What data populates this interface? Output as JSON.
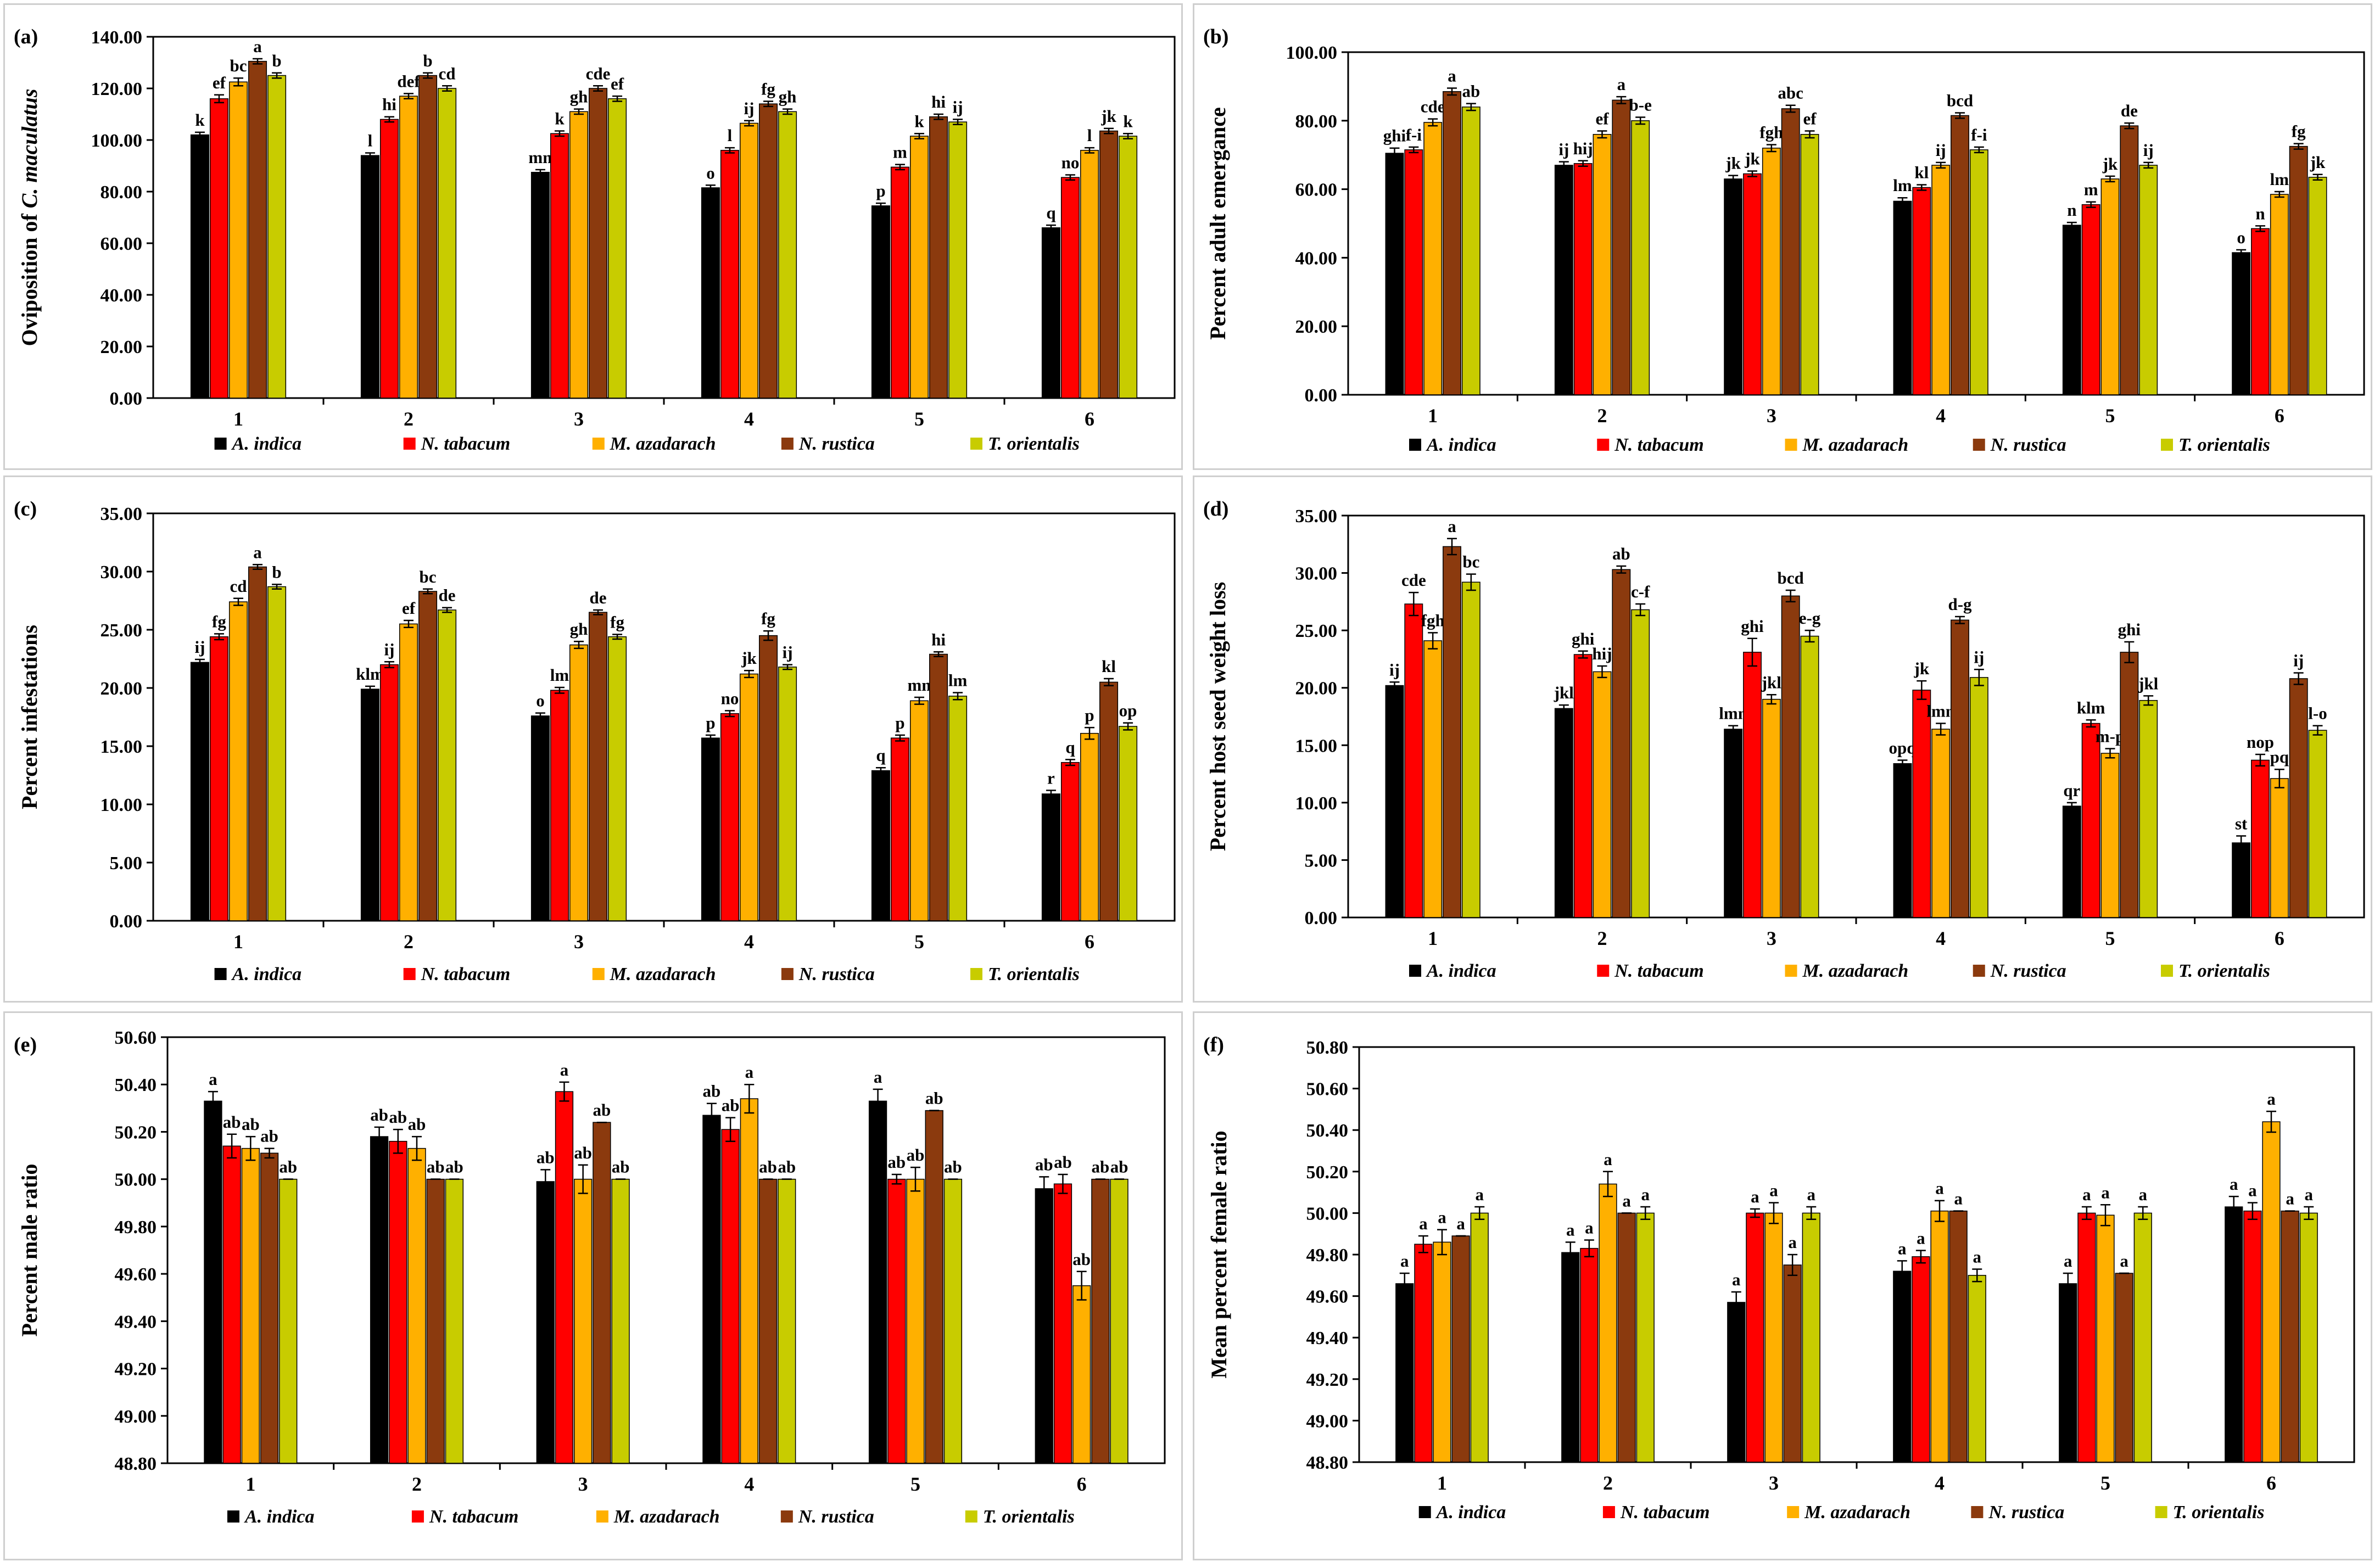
{
  "legend_items": [
    {
      "name": "A. indica",
      "color": "#000000"
    },
    {
      "name": "N. tabacum",
      "color": "#ff0000"
    },
    {
      "name": "M. azadarach",
      "color": "#ffb000"
    },
    {
      "name": "N. rustica",
      "color": "#8b3a0e"
    },
    {
      "name": "T. orientalis",
      "color": "#c8cc00"
    }
  ],
  "chart_data": [
    {
      "type": "bar",
      "panel_label": "(a)",
      "title": "",
      "xlabel": "",
      "ylabel_parts": [
        "Oviposition of ",
        "C. maculatus"
      ],
      "ylim": [
        0,
        140
      ],
      "tick_step": 20,
      "tick_labels": [
        "0.00",
        "20.00",
        "40.00",
        "60.00",
        "80.00",
        "100.00",
        "120.00",
        "140.00"
      ],
      "categories": [
        "1",
        "2",
        "3",
        "4",
        "5",
        "6"
      ],
      "series": [
        {
          "name": "A. indica",
          "values": [
            102,
            94,
            87.5,
            81.5,
            74.5,
            66
          ],
          "errors": [
            1,
            1,
            1,
            1,
            1,
            1
          ],
          "letters": [
            "k",
            "l",
            "mn",
            "o",
            "p",
            "q"
          ]
        },
        {
          "name": "N. tabacum",
          "values": [
            116,
            108,
            102.5,
            96,
            89.5,
            85.5
          ],
          "errors": [
            1.5,
            1,
            1,
            1,
            1,
            1
          ],
          "letters": [
            "ef",
            "hi",
            "k",
            "l",
            "m",
            "no"
          ]
        },
        {
          "name": "M. azadarach",
          "values": [
            122.5,
            117,
            111,
            106.5,
            101.5,
            96
          ],
          "errors": [
            1.5,
            1,
            1,
            1,
            1,
            1
          ],
          "letters": [
            "bc",
            "def",
            "gh",
            "ij",
            "k",
            "l"
          ]
        },
        {
          "name": "N. rustica",
          "values": [
            130.5,
            125,
            120,
            114,
            109,
            103.5
          ],
          "errors": [
            1,
            1,
            1,
            1,
            1,
            1
          ],
          "letters": [
            "a",
            "b",
            "cde",
            "fg",
            "hi",
            "jk"
          ]
        },
        {
          "name": "T. orientalis",
          "values": [
            125,
            120,
            116,
            111,
            107,
            101.5
          ],
          "errors": [
            1,
            1,
            1,
            1,
            1,
            1
          ],
          "letters": [
            "b",
            "cd",
            "ef",
            "gh",
            "ij",
            "k"
          ]
        }
      ]
    },
    {
      "type": "bar",
      "panel_label": "(b)",
      "title": "",
      "xlabel": "",
      "ylabel_parts": [
        "Percent adult emergance"
      ],
      "ylim": [
        0,
        100
      ],
      "tick_step": 20,
      "tick_labels": [
        "0.00",
        "20.00",
        "40.00",
        "60.00",
        "80.00",
        "100.00"
      ],
      "categories": [
        "1",
        "2",
        "3",
        "4",
        "5",
        "6"
      ],
      "series": [
        {
          "name": "A. indica",
          "values": [
            70.5,
            67,
            63,
            56.5,
            49.5,
            41.5
          ],
          "errors": [
            1.5,
            1,
            1,
            1,
            0.8,
            0.8
          ],
          "letters": [
            "ghi",
            "ij",
            "jk",
            "lm",
            "n",
            "o"
          ]
        },
        {
          "name": "N. tabacum",
          "values": [
            71.5,
            67.5,
            64.5,
            60.5,
            55.5,
            48.5
          ],
          "errors": [
            0.8,
            0.8,
            0.8,
            0.8,
            0.8,
            0.8
          ],
          "letters": [
            "f-i",
            "hij",
            "jk",
            "kl",
            "m",
            "n"
          ]
        },
        {
          "name": "M. azadarach",
          "values": [
            79.5,
            76,
            72,
            67,
            63,
            58.5
          ],
          "errors": [
            1,
            1,
            1,
            0.8,
            0.8,
            0.8
          ],
          "letters": [
            "cde",
            "ef",
            "fgh",
            "ij",
            "jk",
            "lm"
          ]
        },
        {
          "name": "N. rustica",
          "values": [
            88.5,
            86,
            83.5,
            81.5,
            78.5,
            72.5
          ],
          "errors": [
            1,
            1,
            1,
            0.8,
            0.8,
            0.8
          ],
          "letters": [
            "a",
            "a",
            "abc",
            "bcd",
            "de",
            "fg"
          ]
        },
        {
          "name": "T. orientalis",
          "values": [
            84,
            80,
            76,
            71.5,
            67,
            63.5
          ],
          "errors": [
            1,
            1,
            1,
            0.8,
            0.8,
            0.8
          ],
          "letters": [
            "ab",
            "b-e",
            "ef",
            "f-i",
            "ij",
            "jk"
          ]
        }
      ]
    },
    {
      "type": "bar",
      "panel_label": "(c)",
      "title": "",
      "xlabel": "",
      "ylabel_parts": [
        "Percent infestations"
      ],
      "ylim": [
        0,
        35
      ],
      "tick_step": 5,
      "tick_labels": [
        "0.00",
        "5.00",
        "10.00",
        "15.00",
        "20.00",
        "25.00",
        "30.00",
        "35.00"
      ],
      "categories": [
        "1",
        "2",
        "3",
        "4",
        "5",
        "6"
      ],
      "series": [
        {
          "name": "A. indica",
          "values": [
            22.2,
            19.9,
            17.6,
            15.7,
            12.9,
            10.9
          ],
          "errors": [
            0.25,
            0.25,
            0.25,
            0.25,
            0.25,
            0.3
          ],
          "letters": [
            "ij",
            "klm",
            "o",
            "p",
            "q",
            "r"
          ]
        },
        {
          "name": "N. tabacum",
          "values": [
            24.4,
            22,
            19.8,
            17.8,
            15.7,
            13.6
          ],
          "errors": [
            0.25,
            0.25,
            0.25,
            0.25,
            0.25,
            0.25
          ],
          "letters": [
            "fg",
            "ij",
            "lm",
            "no",
            "p",
            "q"
          ]
        },
        {
          "name": "M. azadarach",
          "values": [
            27.4,
            25.5,
            23.7,
            21.2,
            18.9,
            16.1
          ],
          "errors": [
            0.3,
            0.3,
            0.3,
            0.3,
            0.3,
            0.5
          ],
          "letters": [
            "cd",
            "ef",
            "gh",
            "jk",
            "mn",
            "p"
          ]
        },
        {
          "name": "N. rustica",
          "values": [
            30.4,
            28.3,
            26.5,
            24.5,
            22.9,
            20.5
          ],
          "errors": [
            0.2,
            0.2,
            0.2,
            0.4,
            0.2,
            0.3
          ],
          "letters": [
            "a",
            "bc",
            "de",
            "fg",
            "hi",
            "kl"
          ]
        },
        {
          "name": "T. orientalis",
          "values": [
            28.7,
            26.7,
            24.4,
            21.8,
            19.3,
            16.7
          ],
          "errors": [
            0.2,
            0.2,
            0.2,
            0.2,
            0.3,
            0.3
          ],
          "letters": [
            "b",
            "de",
            "fg",
            "ij",
            "lm",
            "op"
          ]
        }
      ]
    },
    {
      "type": "bar",
      "panel_label": "(d)",
      "title": "",
      "xlabel": "",
      "ylabel_parts": [
        "Percent host seed weight loss"
      ],
      "ylim": [
        0,
        35
      ],
      "tick_step": 5,
      "tick_labels": [
        "0.00",
        "5.00",
        "10.00",
        "15.00",
        "20.00",
        "25.00",
        "30.00",
        "35.00"
      ],
      "categories": [
        "1",
        "2",
        "3",
        "4",
        "5",
        "6"
      ],
      "series": [
        {
          "name": "A. indica",
          "values": [
            20.2,
            18.2,
            16.4,
            13.4,
            9.7,
            6.5
          ],
          "errors": [
            0.3,
            0.3,
            0.3,
            0.3,
            0.3,
            0.6
          ],
          "letters": [
            "ij",
            "jkl",
            "lmn",
            "opq",
            "qr",
            "st"
          ]
        },
        {
          "name": "N. tabacum",
          "values": [
            27.3,
            22.9,
            23.1,
            19.8,
            16.9,
            13.7
          ],
          "errors": [
            1,
            0.3,
            1.2,
            0.8,
            0.3,
            0.5
          ],
          "letters": [
            "cde",
            "ghi",
            "ghi",
            "jk",
            "klm",
            "nop"
          ]
        },
        {
          "name": "M. azadarach",
          "values": [
            24.1,
            21.4,
            19.0,
            16.4,
            14.3,
            12.1
          ],
          "errors": [
            0.7,
            0.5,
            0.4,
            0.5,
            0.4,
            0.8
          ],
          "letters": [
            "fgh",
            "hij",
            "jkl",
            "lmn",
            "m-p",
            "pq"
          ]
        },
        {
          "name": "N. rustica",
          "values": [
            32.3,
            30.3,
            28.0,
            25.9,
            23.1,
            20.8
          ],
          "errors": [
            0.7,
            0.3,
            0.5,
            0.3,
            0.9,
            0.5
          ],
          "letters": [
            "a",
            "ab",
            "bcd",
            "d-g",
            "ghi",
            "ij"
          ]
        },
        {
          "name": "T. orientalis",
          "values": [
            29.2,
            26.8,
            24.5,
            20.9,
            18.9,
            16.3
          ],
          "errors": [
            0.7,
            0.5,
            0.5,
            0.7,
            0.4,
            0.4
          ],
          "letters": [
            "bc",
            "c-f",
            "e-g",
            "ij",
            "jkl",
            "l-o"
          ]
        }
      ]
    },
    {
      "type": "bar",
      "panel_label": "(e)",
      "title": "",
      "xlabel": "",
      "ylabel_parts": [
        "Percent male ratio"
      ],
      "ylim": [
        48.8,
        50.6
      ],
      "tick_step": 0.2,
      "tick_labels": [
        "48.80",
        "49.00",
        "49.20",
        "49.40",
        "49.60",
        "49.80",
        "50.00",
        "50.20",
        "50.40",
        "50.60"
      ],
      "categories": [
        "1",
        "2",
        "3",
        "4",
        "5",
        "6"
      ],
      "series": [
        {
          "name": "A. indica",
          "values": [
            50.33,
            50.18,
            49.99,
            50.27,
            50.33,
            49.96
          ],
          "errors": [
            0.04,
            0.04,
            0.05,
            0.05,
            0.05,
            0.05
          ],
          "letters": [
            "a",
            "ab",
            "ab",
            "ab",
            "a",
            "ab"
          ]
        },
        {
          "name": "N. tabacum",
          "values": [
            50.14,
            50.16,
            50.37,
            50.21,
            50.0,
            49.98
          ],
          "errors": [
            0.05,
            0.05,
            0.04,
            0.05,
            0.02,
            0.04
          ],
          "letters": [
            "ab",
            "ab",
            "a",
            "ab",
            "ab",
            "ab"
          ]
        },
        {
          "name": "M. azadarach",
          "values": [
            50.13,
            50.13,
            50.0,
            50.34,
            50.0,
            49.55
          ],
          "errors": [
            0.05,
            0.05,
            0.06,
            0.06,
            0.05,
            0.06
          ],
          "letters": [
            "ab",
            "ab",
            "ab",
            "a",
            "ab",
            "ab"
          ]
        },
        {
          "name": "N. rustica",
          "values": [
            50.11,
            50.0,
            50.24,
            50.0,
            50.29,
            50.0
          ],
          "errors": [
            0.02,
            0.0,
            0.0,
            0.0,
            0.0,
            0.0
          ],
          "letters": [
            "ab",
            "ab",
            "ab",
            "ab",
            "ab",
            "ab"
          ]
        },
        {
          "name": "T. orientalis",
          "values": [
            50.0,
            50.0,
            50.0,
            50.0,
            50.0,
            50.0
          ],
          "errors": [
            0.0,
            0.0,
            0.0,
            0.0,
            0.0,
            0.0
          ],
          "letters": [
            "ab",
            "ab",
            "ab",
            "ab",
            "ab",
            "ab"
          ]
        }
      ]
    },
    {
      "type": "bar",
      "panel_label": "(f)",
      "title": "",
      "xlabel": "",
      "ylabel_parts": [
        "Mean percent female ratio"
      ],
      "ylim": [
        48.8,
        50.8
      ],
      "tick_step": 0.2,
      "tick_labels": [
        "48.80",
        "49.00",
        "49.20",
        "49.40",
        "49.60",
        "49.80",
        "50.00",
        "50.20",
        "50.40",
        "50.60",
        "50.80"
      ],
      "categories": [
        "1",
        "2",
        "3",
        "4",
        "5",
        "6"
      ],
      "series": [
        {
          "name": "A. indica",
          "values": [
            49.66,
            49.81,
            49.57,
            49.72,
            49.66,
            50.03
          ],
          "errors": [
            0.05,
            0.05,
            0.05,
            0.05,
            0.05,
            0.05
          ],
          "letters": [
            "a",
            "a",
            "a",
            "a",
            "a",
            "a"
          ]
        },
        {
          "name": "N. tabacum",
          "values": [
            49.85,
            49.83,
            50.0,
            49.79,
            50.0,
            50.01
          ],
          "errors": [
            0.04,
            0.04,
            0.02,
            0.03,
            0.03,
            0.04
          ],
          "letters": [
            "a",
            "a",
            "a",
            "a",
            "a",
            "a"
          ]
        },
        {
          "name": "M. azadarach",
          "values": [
            49.86,
            50.14,
            50.0,
            50.01,
            49.99,
            50.44
          ],
          "errors": [
            0.06,
            0.06,
            0.05,
            0.05,
            0.05,
            0.05
          ],
          "letters": [
            "a",
            "a",
            "a",
            "a",
            "a",
            "a"
          ]
        },
        {
          "name": "N. rustica",
          "values": [
            49.89,
            50.0,
            49.75,
            50.01,
            49.71,
            50.01
          ],
          "errors": [
            0.0,
            0.0,
            0.05,
            0.0,
            0.0,
            0.0
          ],
          "letters": [
            "a",
            "a",
            "a",
            "a",
            "a",
            "a"
          ]
        },
        {
          "name": "T. orientalis",
          "values": [
            50.0,
            50.0,
            50.0,
            49.7,
            50.0,
            50.0
          ],
          "errors": [
            0.03,
            0.03,
            0.03,
            0.03,
            0.03,
            0.03
          ],
          "letters": [
            "a",
            "a",
            "a",
            "a",
            "a",
            "a"
          ]
        }
      ]
    }
  ]
}
